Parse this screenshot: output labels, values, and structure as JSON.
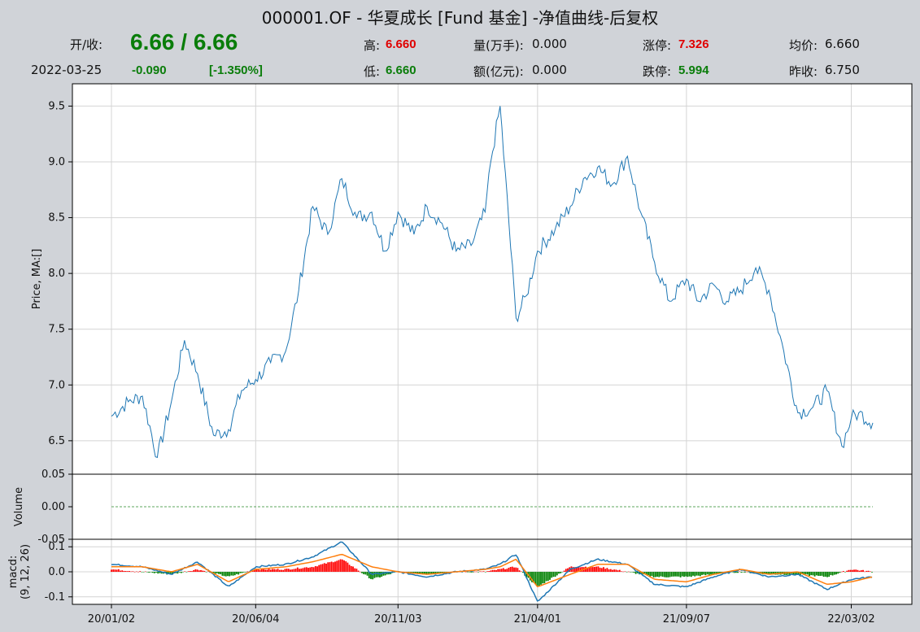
{
  "header": {
    "title": "000001.OF - 华夏成长 [Fund 基金] -净值曲线-后复权",
    "open_close_label": "开/收:",
    "open_close_value": "6.66 / 6.66",
    "date": "2022-03-25",
    "change": "-0.090",
    "change_pct": "[-1.350%]",
    "high_label": "高:",
    "high_value": "6.660",
    "low_label": "低:",
    "low_value": "6.660",
    "volume_label": "量(万手):",
    "volume_value": "0.000",
    "amount_label": "额(亿元):",
    "amount_value": "0.000",
    "limit_up_label": "涨停:",
    "limit_up_value": "7.326",
    "limit_down_label": "跌停:",
    "limit_down_value": "5.994",
    "avg_label": "均价:",
    "avg_value": "6.660",
    "prev_close_label": "昨收:",
    "prev_close_value": "6.750"
  },
  "colors": {
    "price": "#1f77b4",
    "signal": "#ff7f0e",
    "pos_bar": "#ff0000",
    "neg_bar": "#008000",
    "up_text": "#e00000",
    "down_text": "#0a7d0a"
  },
  "chart_data": [
    {
      "type": "line",
      "ylabel": "Price, MA:[]",
      "ylim": [
        6.2,
        9.7
      ],
      "yticks": [
        "6.5",
        "7.0",
        "7.5",
        "8.0",
        "8.5",
        "9.0",
        "9.5"
      ],
      "grid": true,
      "x": [
        "2020-01-02",
        "2020-01-20",
        "2020-02-04",
        "2020-02-20",
        "2020-03-06",
        "2020-03-20",
        "2020-04-03",
        "2020-04-20",
        "2020-05-06",
        "2020-05-20",
        "2020-06-04",
        "2020-06-20",
        "2020-07-06",
        "2020-07-20",
        "2020-08-04",
        "2020-08-20",
        "2020-09-04",
        "2020-09-20",
        "2020-10-06",
        "2020-10-20",
        "2020-11-03",
        "2020-11-20",
        "2020-12-04",
        "2020-12-20",
        "2021-01-04",
        "2021-01-20",
        "2021-02-04",
        "2021-02-10",
        "2021-02-20",
        "2021-03-09",
        "2021-03-20",
        "2021-04-01",
        "2021-04-20",
        "2021-05-06",
        "2021-05-20",
        "2021-06-04",
        "2021-06-20",
        "2021-07-06",
        "2021-07-20",
        "2021-08-04",
        "2021-08-20",
        "2021-09-07",
        "2021-09-20",
        "2021-10-06",
        "2021-10-20",
        "2021-11-04",
        "2021-11-20",
        "2021-12-04",
        "2021-12-20",
        "2022-01-04",
        "2022-01-20",
        "2022-02-04",
        "2022-02-20",
        "2022-03-02",
        "2022-03-10",
        "2022-03-25"
      ],
      "values": [
        6.72,
        6.85,
        6.9,
        6.35,
        6.85,
        7.4,
        7.1,
        6.55,
        6.6,
        6.95,
        7.05,
        7.2,
        7.3,
        7.85,
        8.6,
        8.35,
        8.85,
        8.5,
        8.55,
        8.2,
        8.55,
        8.35,
        8.6,
        8.45,
        8.2,
        8.25,
        8.55,
        9.0,
        9.5,
        7.6,
        7.8,
        8.2,
        8.4,
        8.6,
        8.85,
        8.95,
        8.8,
        9.05,
        8.55,
        8.1,
        7.75,
        7.95,
        7.75,
        7.9,
        7.75,
        7.85,
        8.05,
        7.85,
        7.3,
        6.75,
        6.8,
        6.95,
        6.45,
        6.7,
        6.75,
        6.66
      ],
      "xtick_labels": [
        "20/01/02",
        "20/06/04",
        "20/11/03",
        "21/04/01",
        "21/09/07",
        "22/03/02"
      ]
    },
    {
      "type": "bar",
      "ylabel": "Volume",
      "ylim": [
        -0.05,
        0.05
      ],
      "yticks": [
        "-0.05",
        "0.00",
        "0.05"
      ],
      "values": "all 0.000"
    },
    {
      "type": "line",
      "ylabel_line1": "macd:",
      "ylabel_line2": "(9, 12, 26)",
      "ylim": [
        -0.13,
        0.13
      ],
      "yticks": [
        "-0.1",
        "0.0",
        "0.1"
      ],
      "x": [
        "2020-01-02",
        "2020-02-04",
        "2020-03-06",
        "2020-04-03",
        "2020-05-06",
        "2020-06-04",
        "2020-07-06",
        "2020-08-04",
        "2020-09-04",
        "2020-10-06",
        "2020-11-03",
        "2020-12-04",
        "2021-01-04",
        "2021-02-04",
        "2021-02-20",
        "2021-03-09",
        "2021-04-01",
        "2021-05-06",
        "2021-06-04",
        "2021-07-06",
        "2021-08-04",
        "2021-09-07",
        "2021-10-06",
        "2021-11-04",
        "2021-12-04",
        "2022-01-04",
        "2022-02-04",
        "2022-03-02",
        "2022-03-25"
      ],
      "series": [
        {
          "name": "macd",
          "values": [
            0.03,
            0.02,
            -0.01,
            0.04,
            -0.06,
            0.02,
            0.03,
            0.06,
            0.12,
            -0.01,
            0.0,
            -0.02,
            0.0,
            0.01,
            0.03,
            0.07,
            -0.12,
            0.01,
            0.05,
            0.03,
            -0.05,
            -0.06,
            -0.02,
            0.01,
            -0.02,
            -0.01,
            -0.07,
            -0.03,
            -0.02
          ]
        },
        {
          "name": "signal",
          "values": [
            0.02,
            0.02,
            0.0,
            0.03,
            -0.04,
            0.01,
            0.02,
            0.04,
            0.07,
            0.02,
            0.0,
            -0.01,
            0.0,
            0.01,
            0.02,
            0.05,
            -0.06,
            -0.01,
            0.03,
            0.03,
            -0.03,
            -0.04,
            -0.01,
            0.01,
            -0.01,
            0.0,
            -0.05,
            -0.04,
            -0.02
          ]
        }
      ]
    }
  ]
}
